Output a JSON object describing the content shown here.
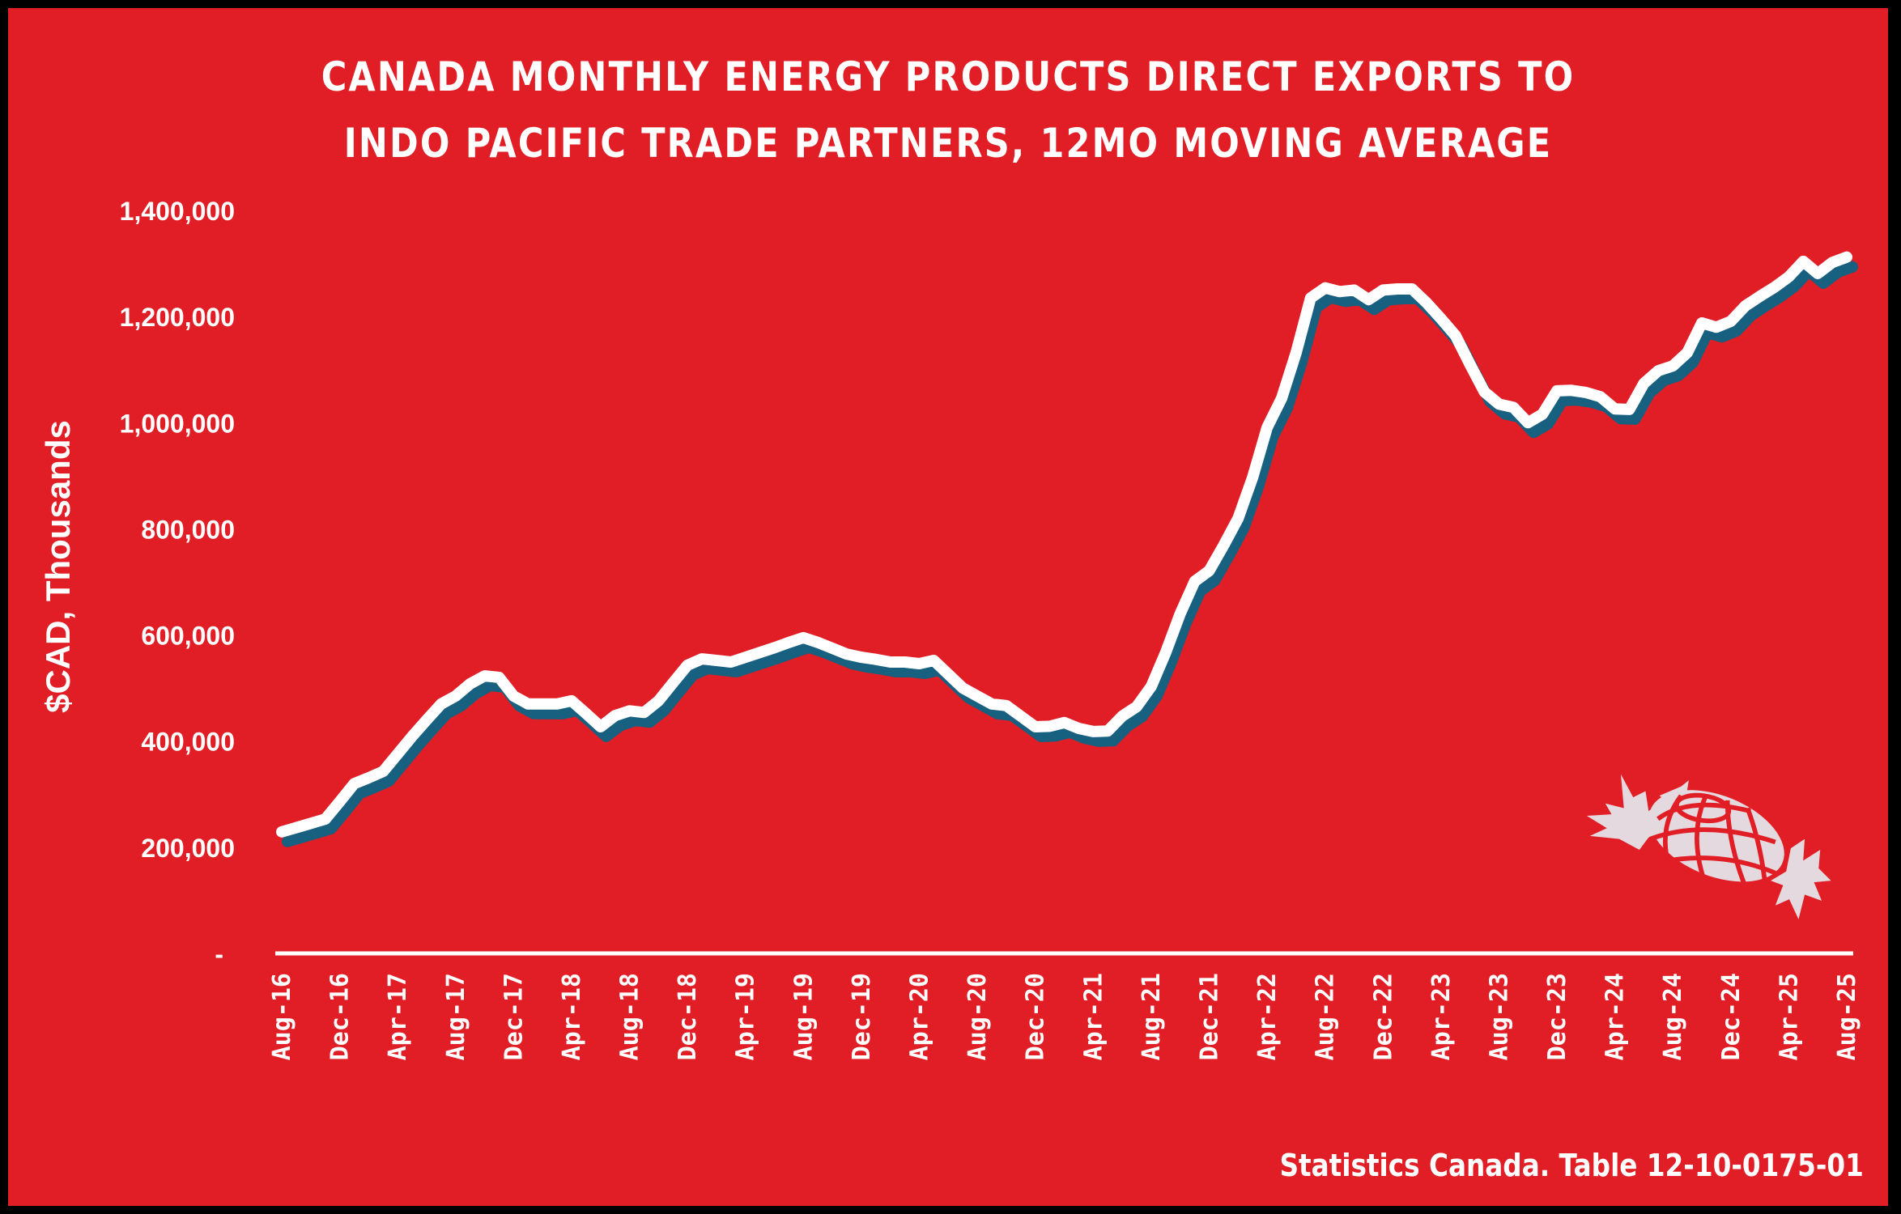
{
  "page": {
    "title_lines": [
      "CANADA MONTHLY ENERGY PRODUCTS DIRECT EXPORTS TO",
      "INDO PACIFIC TRADE PARTNERS, 12MO MOVING AVERAGE"
    ],
    "source": "Statistics Canada. Table 12-10-0175-01",
    "logo_icon": "maple-leaf-globe-logo",
    "colors": {
      "background": "#e11d25",
      "frame": "#000000",
      "line": "#ffffff",
      "shadow": "#17607f",
      "bars": "#ffffff"
    }
  },
  "chart_data": {
    "type": "line",
    "title": "CANADA MONTHLY ENERGY PRODUCTS DIRECT EXPORTS TO INDO PACIFIC TRADE PARTNERS, 12MO MOVING AVERAGE",
    "xlabel": "",
    "ylabel": "$CAD, Thousands",
    "ylim": [
      0,
      1400000
    ],
    "yticks": [
      0,
      200000,
      400000,
      600000,
      800000,
      1000000,
      1200000,
      1400000
    ],
    "ytick_labels": [
      "-",
      "200,000",
      "400,000",
      "600,000",
      "800,000",
      "1,000,000",
      "1,200,000",
      "1,400,000"
    ],
    "xtick_labels": [
      "Aug-16",
      "Dec-16",
      "Apr-17",
      "Aug-17",
      "Dec-17",
      "Apr-18",
      "Aug-18",
      "Dec-18",
      "Apr-19",
      "Aug-19",
      "Dec-19",
      "Apr-20",
      "Aug-20",
      "Dec-20",
      "Apr-21",
      "Aug-21",
      "Dec-21",
      "Apr-22",
      "Aug-22",
      "Dec-22",
      "Apr-23",
      "Aug-23",
      "Dec-23",
      "Apr-24",
      "Aug-24",
      "Dec-24",
      "Apr-25",
      "Aug-25"
    ],
    "xtick_every_n_months": 4,
    "grid": false,
    "legend": "none",
    "x_start": "Aug-16",
    "x_end": "Aug-25",
    "series": [
      {
        "name": "12MO Moving Average",
        "values": [
          229000,
          237000,
          245000,
          253000,
          286000,
          320000,
          331000,
          343000,
          376000,
          409000,
          440000,
          470000,
          485000,
          508000,
          523000,
          520000,
          485000,
          470000,
          470000,
          470000,
          476000,
          452000,
          427000,
          448000,
          457000,
          454000,
          476000,
          510000,
          543000,
          555000,
          552000,
          549000,
          558000,
          567000,
          576000,
          586000,
          595000,
          586000,
          575000,
          564000,
          558000,
          554000,
          549000,
          549000,
          546000,
          552000,
          526000,
          500000,
          485000,
          470000,
          467000,
          447000,
          427000,
          428000,
          435000,
          424000,
          418000,
          419000,
          447000,
          465000,
          503000,
          567000,
          640000,
          701000,
          721000,
          769000,
          820000,
          897000,
          991000,
          1046000,
          1132000,
          1235000,
          1254000,
          1247000,
          1250000,
          1232000,
          1250000,
          1252000,
          1252000,
          1226000,
          1196000,
          1164000,
          1110000,
          1058000,
          1035000,
          1029000,
          1000000,
          1016000,
          1060000,
          1061000,
          1057000,
          1049000,
          1026000,
          1025000,
          1074000,
          1098000,
          1107000,
          1132000,
          1188000,
          1180000,
          1191000,
          1220000,
          1238000,
          1255000,
          1275000,
          1304000,
          1281000,
          1302000,
          1312000
        ]
      }
    ]
  }
}
